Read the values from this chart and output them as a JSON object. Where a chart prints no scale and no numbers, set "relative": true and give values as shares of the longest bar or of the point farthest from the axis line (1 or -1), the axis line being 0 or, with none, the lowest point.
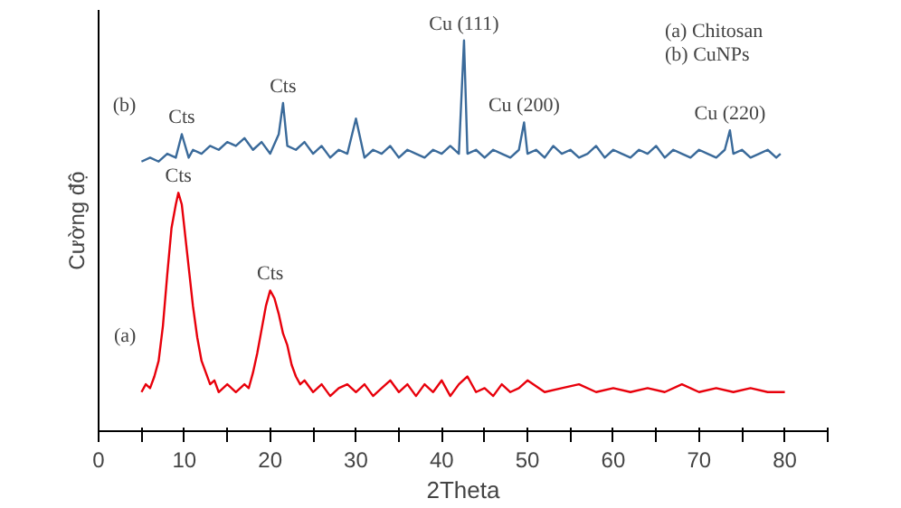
{
  "chart_data": {
    "type": "line",
    "relative": true,
    "xlabel": "2Theta",
    "ylabel": "Cường độ",
    "xlim": [
      0,
      85
    ],
    "xticks": [
      0,
      {
        "value": 5,
        "label": null
      },
      10,
      {
        "value": 15,
        "label": null
      },
      20,
      {
        "value": 25,
        "label": null
      },
      30,
      {
        "value": 35,
        "label": null
      },
      40,
      {
        "value": 45,
        "label": null
      },
      50,
      {
        "value": 55,
        "label": null
      },
      60,
      {
        "value": 65,
        "label": null
      },
      70,
      {
        "value": 75,
        "label": null
      },
      80,
      {
        "value": 85,
        "label": null
      }
    ],
    "grid": false,
    "marker": "none",
    "line_style": "solid",
    "series": [
      {
        "name": "(a)",
        "color": "#e8000b",
        "x": [
          5,
          5.5,
          6,
          6.5,
          7,
          7.5,
          8,
          8.5,
          9,
          9.3,
          9.7,
          10,
          10.5,
          11,
          11.5,
          12,
          12.5,
          13,
          13.5,
          14,
          15,
          16,
          17,
          17.5,
          18,
          18.5,
          19,
          19.5,
          20,
          20.5,
          21,
          21.5,
          22,
          22.5,
          23,
          23.5,
          24,
          25,
          26,
          27,
          28,
          29,
          30,
          31,
          32,
          33,
          34,
          35,
          36,
          37,
          38,
          39,
          40,
          41,
          42,
          43,
          44,
          45,
          46,
          47,
          48,
          49,
          50,
          52,
          54,
          56,
          58,
          60,
          62,
          64,
          66,
          68,
          70,
          72,
          74,
          76,
          78,
          80
        ],
        "values": [
          0.1,
          0.12,
          0.11,
          0.14,
          0.18,
          0.27,
          0.4,
          0.52,
          0.58,
          0.61,
          0.58,
          0.52,
          0.42,
          0.32,
          0.24,
          0.18,
          0.15,
          0.12,
          0.13,
          0.1,
          0.12,
          0.1,
          0.12,
          0.11,
          0.15,
          0.2,
          0.26,
          0.32,
          0.36,
          0.34,
          0.3,
          0.25,
          0.22,
          0.17,
          0.14,
          0.12,
          0.13,
          0.1,
          0.12,
          0.09,
          0.11,
          0.12,
          0.1,
          0.12,
          0.09,
          0.11,
          0.13,
          0.1,
          0.12,
          0.09,
          0.12,
          0.1,
          0.13,
          0.09,
          0.12,
          0.14,
          0.1,
          0.11,
          0.09,
          0.12,
          0.1,
          0.11,
          0.13,
          0.1,
          0.11,
          0.12,
          0.1,
          0.11,
          0.1,
          0.11,
          0.1,
          0.12,
          0.1,
          0.11,
          0.1,
          0.11,
          0.1,
          0.1
        ]
      },
      {
        "name": "(b)",
        "color": "#3a6a9a",
        "x": [
          5,
          6,
          7,
          8,
          9,
          9.7,
          10.5,
          11,
          12,
          13,
          14,
          15,
          16,
          17,
          18,
          19,
          20,
          21,
          21.5,
          22,
          23,
          24,
          25,
          26,
          27,
          28,
          29,
          30,
          31,
          32,
          33,
          34,
          35,
          36,
          37,
          38,
          39,
          40,
          41,
          42,
          42.6,
          43,
          44,
          45,
          46,
          47,
          48,
          49,
          49.6,
          50,
          51,
          52,
          53,
          54,
          55,
          56,
          57,
          58,
          59,
          60,
          61,
          62,
          63,
          64,
          65,
          66,
          67,
          68,
          69,
          70,
          71,
          72,
          73,
          73.6,
          74,
          75,
          76,
          77,
          78,
          79,
          79.5
        ],
        "values": [
          0.69,
          0.7,
          0.69,
          0.71,
          0.7,
          0.76,
          0.7,
          0.72,
          0.71,
          0.73,
          0.72,
          0.74,
          0.73,
          0.75,
          0.72,
          0.74,
          0.71,
          0.76,
          0.84,
          0.73,
          0.72,
          0.74,
          0.71,
          0.73,
          0.7,
          0.72,
          0.71,
          0.8,
          0.7,
          0.72,
          0.71,
          0.73,
          0.7,
          0.72,
          0.71,
          0.7,
          0.72,
          0.71,
          0.73,
          0.71,
          1.0,
          0.71,
          0.72,
          0.7,
          0.72,
          0.71,
          0.7,
          0.72,
          0.79,
          0.71,
          0.72,
          0.7,
          0.73,
          0.71,
          0.72,
          0.7,
          0.71,
          0.73,
          0.7,
          0.72,
          0.71,
          0.7,
          0.72,
          0.71,
          0.73,
          0.7,
          0.72,
          0.71,
          0.7,
          0.72,
          0.71,
          0.7,
          0.72,
          0.77,
          0.71,
          0.72,
          0.7,
          0.71,
          0.72,
          0.7,
          0.71
        ]
      }
    ],
    "annotations": [
      {
        "text": "Cts",
        "x": 9.3,
        "y": 0.61
      },
      {
        "text": "Cts",
        "x": 20,
        "y": 0.36
      },
      {
        "text": "Cts",
        "x": 9.7,
        "y": 0.76
      },
      {
        "text": "Cts",
        "x": 21.5,
        "y": 0.84
      },
      {
        "text": "Cu (111)",
        "x": 42.6,
        "y": 1.0
      },
      {
        "text": "Cu (200)",
        "x": 49.6,
        "y": 0.79
      },
      {
        "text": "Cu (220)",
        "x": 73.6,
        "y": 0.77
      },
      "(a) Chitosan",
      "(b) CuNPs"
    ]
  }
}
